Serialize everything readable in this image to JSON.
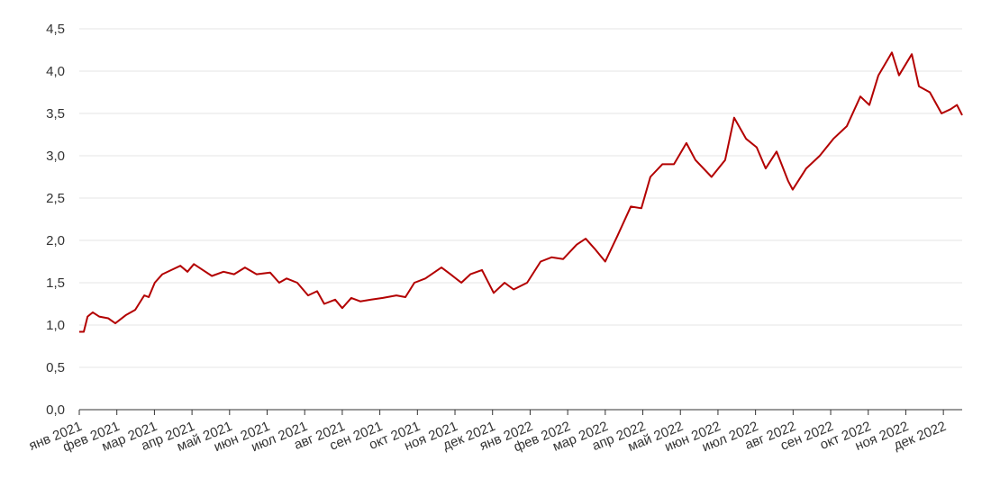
{
  "chart_data": {
    "type": "line",
    "x": [
      0,
      0.12,
      0.22,
      0.36,
      0.53,
      0.77,
      0.96,
      1.25,
      1.49,
      1.73,
      1.85,
      2.01,
      2.21,
      2.45,
      2.69,
      2.88,
      3.05,
      3.29,
      3.53,
      3.84,
      4.12,
      4.41,
      4.72,
      5.08,
      5.32,
      5.52,
      5.8,
      6.09,
      6.33,
      6.52,
      6.81,
      7.0,
      7.24,
      7.48,
      7.77,
      8.08,
      8.44,
      8.68,
      8.92,
      9.21,
      9.64,
      9.88,
      10.17,
      10.41,
      10.72,
      11.03,
      11.32,
      11.56,
      11.92,
      12.28,
      12.57,
      12.88,
      13.24,
      13.48,
      13.72,
      14.0,
      14.32,
      14.68,
      14.96,
      15.2,
      15.52,
      15.83,
      16.16,
      16.4,
      16.83,
      17.19,
      17.43,
      17.75,
      18.03,
      18.27,
      18.56,
      18.87,
      18.99,
      19.35,
      19.71,
      20.07,
      20.43,
      20.79,
      21.03,
      21.27,
      21.63,
      21.82,
      22.16,
      22.35,
      22.64,
      22.95,
      23.19,
      23.36,
      23.5
    ],
    "series": [
      {
        "color": "#b30000",
        "values": [
          0.92,
          0.92,
          1.1,
          1.15,
          1.1,
          1.08,
          1.02,
          1.12,
          1.18,
          1.35,
          1.33,
          1.5,
          1.6,
          1.65,
          1.7,
          1.63,
          1.72,
          1.65,
          1.58,
          1.63,
          1.6,
          1.68,
          1.6,
          1.62,
          1.5,
          1.55,
          1.5,
          1.35,
          1.4,
          1.25,
          1.3,
          1.2,
          1.32,
          1.28,
          1.3,
          1.32,
          1.35,
          1.33,
          1.5,
          1.55,
          1.68,
          1.6,
          1.5,
          1.6,
          1.65,
          1.38,
          1.5,
          1.42,
          1.5,
          1.75,
          1.8,
          1.78,
          1.95,
          2.02,
          1.9,
          1.75,
          2.05,
          2.4,
          2.38,
          2.75,
          2.9,
          2.9,
          3.15,
          2.95,
          2.75,
          2.95,
          3.45,
          3.2,
          3.1,
          2.85,
          3.05,
          2.7,
          2.6,
          2.85,
          3.0,
          3.2,
          3.35,
          3.7,
          3.6,
          3.95,
          4.22,
          3.95,
          4.2,
          3.82,
          3.75,
          3.5,
          3.55,
          3.6,
          3.48
        ]
      }
    ],
    "xlim": [
      0,
      23.5
    ],
    "xticks": [
      {
        "value": 0,
        "label": "янв 2021"
      },
      {
        "value": 1,
        "label": "фев 2021"
      },
      {
        "value": 2,
        "label": "мар 2021"
      },
      {
        "value": 3,
        "label": "апр 2021"
      },
      {
        "value": 4,
        "label": "май 2021"
      },
      {
        "value": 5,
        "label": "июн 2021"
      },
      {
        "value": 6,
        "label": "июл 2021"
      },
      {
        "value": 7,
        "label": "авг 2021"
      },
      {
        "value": 8,
        "label": "сен 2021"
      },
      {
        "value": 9,
        "label": "окт 2021"
      },
      {
        "value": 10,
        "label": "ноя 2021"
      },
      {
        "value": 11,
        "label": "дек 2021"
      },
      {
        "value": 12,
        "label": "янв 2022"
      },
      {
        "value": 13,
        "label": "фев 2022"
      },
      {
        "value": 14,
        "label": "мар 2022"
      },
      {
        "value": 15,
        "label": "апр 2022"
      },
      {
        "value": 16,
        "label": "май 2022"
      },
      {
        "value": 17,
        "label": "июн 2022"
      },
      {
        "value": 18,
        "label": "июл 2022"
      },
      {
        "value": 19,
        "label": "авг 2022"
      },
      {
        "value": 20,
        "label": "сен 2022"
      },
      {
        "value": 21,
        "label": "окт 2022"
      },
      {
        "value": 22,
        "label": "ноя 2022"
      },
      {
        "value": 23,
        "label": "дек 2022"
      }
    ],
    "ylim": [
      0,
      4.5
    ],
    "yticks": [
      {
        "value": 0,
        "label": "0,0"
      },
      {
        "value": 0.5,
        "label": "0,5"
      },
      {
        "value": 1,
        "label": "1,0"
      },
      {
        "value": 1.5,
        "label": "1,5"
      },
      {
        "value": 2,
        "label": "2,0"
      },
      {
        "value": 2.5,
        "label": "2,5"
      },
      {
        "value": 3,
        "label": "3,0"
      },
      {
        "value": 3.5,
        "label": "3,5"
      },
      {
        "value": 4,
        "label": "4,0"
      },
      {
        "value": 4.5,
        "label": "4,5"
      }
    ],
    "grid": true
  }
}
